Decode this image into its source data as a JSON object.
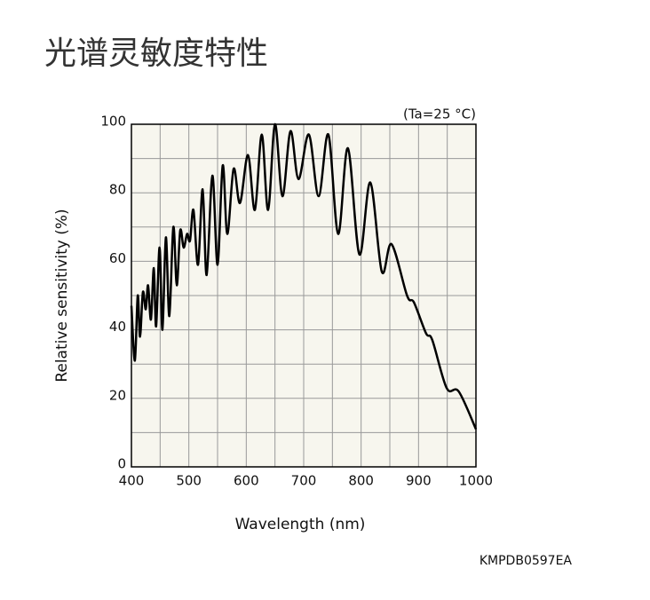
{
  "chart_data": {
    "type": "line",
    "title": "光谱灵敏度特性",
    "annotation": "(Ta=25 °C)",
    "code": "KMPDB0597EA",
    "xlabel": "Wavelength (nm)",
    "ylabel": "Relative sensitivity (%)",
    "x": [
      400,
      406,
      411,
      415,
      420,
      425,
      429,
      434,
      439,
      443,
      449,
      454,
      460,
      466,
      473,
      479,
      485,
      491,
      497,
      502,
      508,
      516,
      524,
      531,
      541,
      550,
      559,
      567,
      578,
      589,
      603,
      615,
      627,
      638,
      650,
      663,
      677,
      691,
      709,
      726,
      743,
      760,
      777,
      797,
      816,
      836,
      853,
      880,
      892,
      913,
      924,
      949,
      970,
      1000
    ],
    "series": [
      {
        "name": "Relative sensitivity",
        "color": "#000000",
        "values": [
          47,
          31,
          50,
          38,
          51,
          46,
          53,
          43,
          58,
          41,
          64,
          40,
          67,
          44,
          70,
          53,
          69,
          64,
          68,
          66,
          75,
          59,
          81,
          56,
          85,
          59,
          88,
          68,
          87,
          77,
          91,
          75,
          97,
          75,
          100,
          79,
          98,
          84,
          97,
          79,
          97,
          68,
          93,
          62,
          83,
          57,
          65,
          50,
          48,
          39,
          37,
          23,
          22,
          11
        ]
      }
    ],
    "xlim": [
      400,
      1000
    ],
    "ylim": [
      0,
      100
    ],
    "xticks": [
      400,
      500,
      600,
      700,
      800,
      900,
      1000
    ],
    "yticks": [
      0,
      20,
      40,
      60,
      80,
      100
    ],
    "x_minor_grid": [
      450,
      550,
      650,
      750,
      850,
      950
    ],
    "y_minor_grid": [
      10,
      30,
      50,
      70,
      90
    ],
    "grid": true
  }
}
